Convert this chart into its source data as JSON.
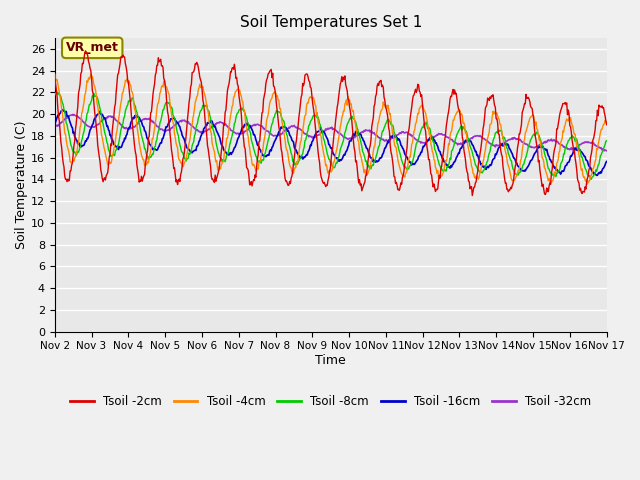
{
  "title": "Soil Temperatures Set 1",
  "xlabel": "Time",
  "ylabel": "Soil Temperature (C)",
  "ylim": [
    0,
    27
  ],
  "yticks": [
    0,
    2,
    4,
    6,
    8,
    10,
    12,
    14,
    16,
    18,
    20,
    22,
    24,
    26
  ],
  "x_tick_positions": [
    0,
    1,
    2,
    3,
    4,
    5,
    6,
    7,
    8,
    9,
    10,
    11,
    12,
    13,
    14,
    15
  ],
  "x_tick_labels": [
    "Nov 2",
    "Nov 3",
    "Nov 4",
    "Nov 5",
    "Nov 6",
    "Nov 7",
    "Nov 8",
    "Nov 9",
    "Nov 10",
    "Nov 11",
    "Nov 12",
    "Nov 13",
    "Nov 14",
    "Nov 15",
    "Nov 16",
    "Nov 17"
  ],
  "legend_labels": [
    "Tsoil -2cm",
    "Tsoil -4cm",
    "Tsoil -8cm",
    "Tsoil -16cm",
    "Tsoil -32cm"
  ],
  "line_colors": [
    "#dd0000",
    "#ff8800",
    "#00cc00",
    "#0000cc",
    "#9933cc"
  ],
  "annotation_text": "VR_met",
  "annotation_bg": "#ffffaa",
  "annotation_border": "#888800",
  "fig_bg": "#f0f0f0",
  "ax_bg": "#e8e8e8",
  "grid_color": "#ffffff",
  "n_days": 15,
  "n_per_day": 48
}
